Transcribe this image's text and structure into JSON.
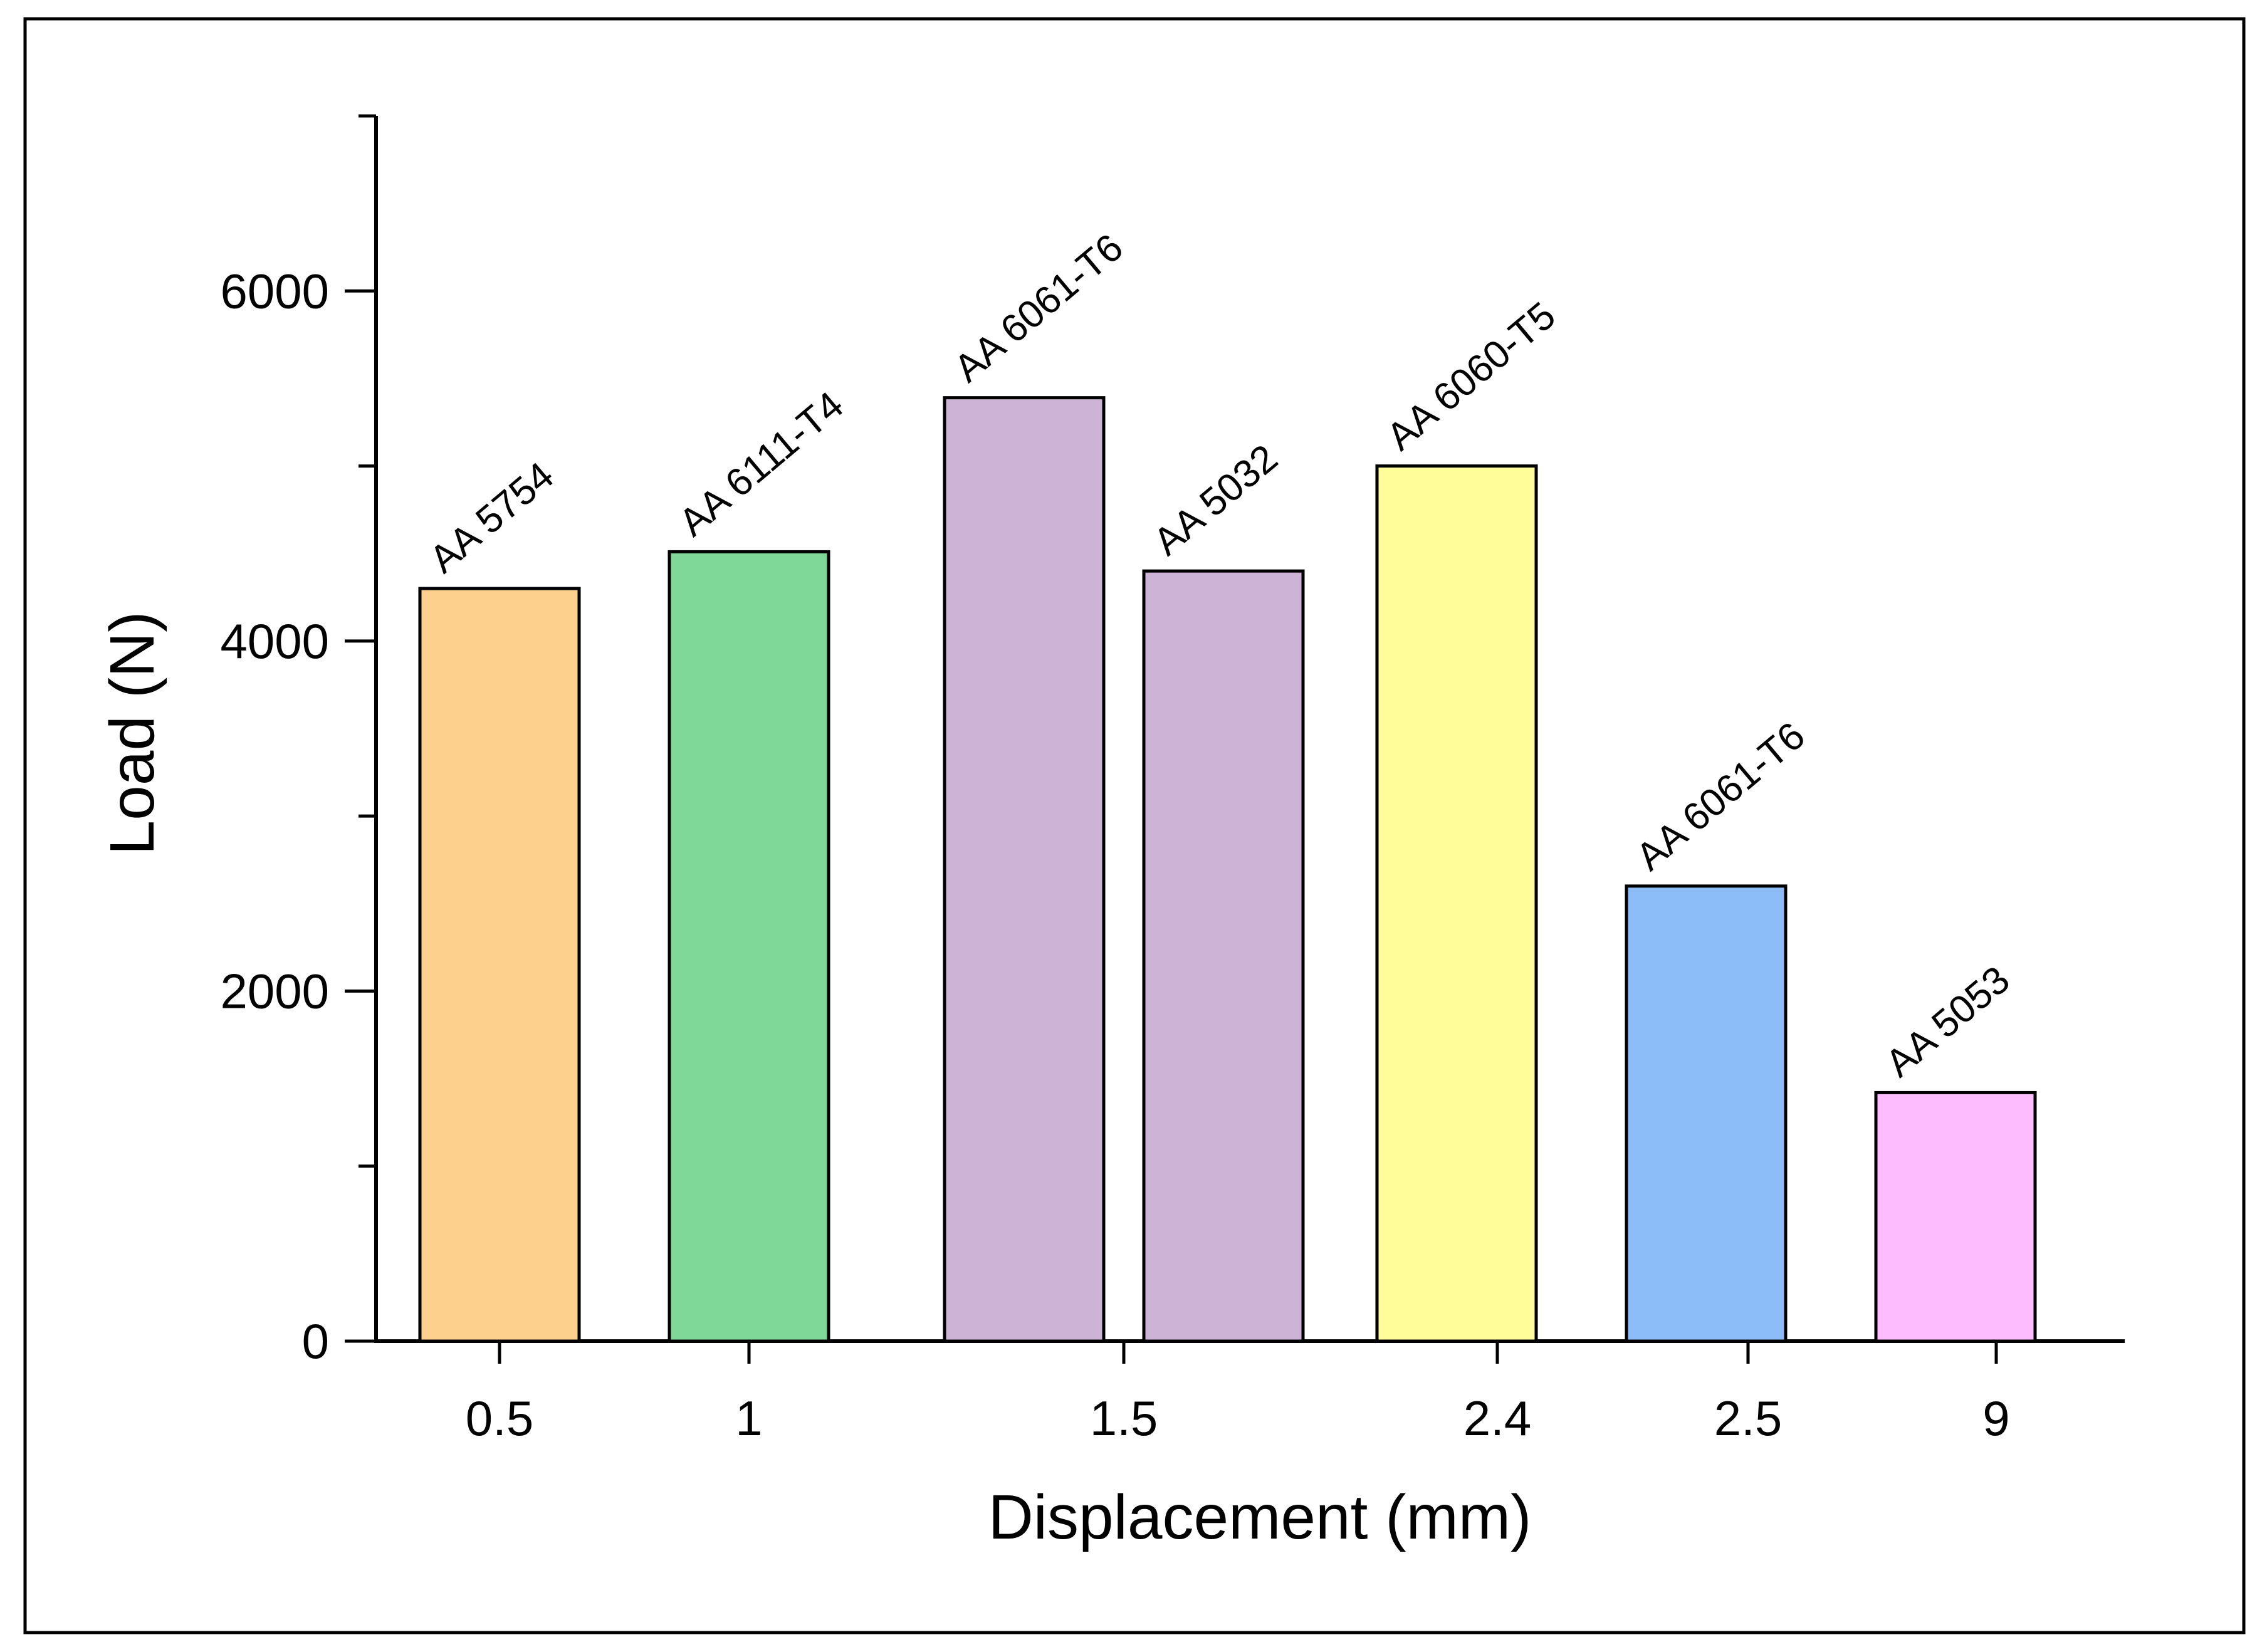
{
  "chart_data": {
    "type": "bar",
    "title": "",
    "xlabel": "Displacement (mm)",
    "ylabel": "Load (N)",
    "ylim": [
      0,
      7000
    ],
    "yticks": [
      0,
      2000,
      4000,
      6000
    ],
    "yticks_minor": [
      1000,
      3000,
      5000,
      7000
    ],
    "grid": false,
    "x_categories": [
      "0.5",
      "1",
      "1.5",
      "2.4",
      "2.5",
      "9"
    ],
    "bars": [
      {
        "category": "0.5",
        "label": "AA 5754",
        "value": 4300,
        "color": "#FDD08E"
      },
      {
        "category": "1",
        "label": "AA 6111-T4",
        "value": 4510,
        "color": "#7FD897"
      },
      {
        "category": "1.5",
        "label": "AA 6061-T6",
        "value": 5390,
        "color": "#CDB4D7"
      },
      {
        "category": "1.5",
        "label": "AA 5032",
        "value": 4400,
        "color": "#CDB4D7"
      },
      {
        "category": "2.4",
        "label": "AA 6060-T5",
        "value": 5000,
        "color": "#FEFD9A"
      },
      {
        "category": "2.5",
        "label": "AA 6061-T6",
        "value": 2600,
        "color": "#8DBDF8"
      },
      {
        "category": "9",
        "label": "AA 5053",
        "value": 1420,
        "color": "#FDBCFD"
      }
    ]
  }
}
